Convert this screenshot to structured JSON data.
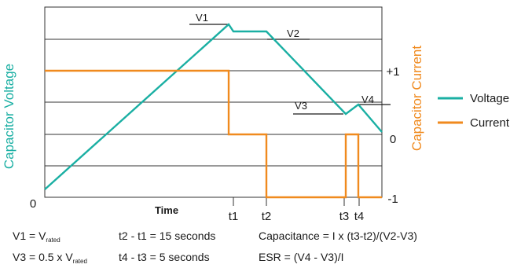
{
  "chart_data": {
    "type": "line",
    "ylabel_left": "Capacitor Voltage",
    "ylabel_right": "Capacitor Current",
    "xlabel": "Time",
    "left_ticks": [
      "0"
    ],
    "right_ticks": [
      "+1",
      "0",
      "-1"
    ],
    "time_markers": [
      "t1",
      "t2",
      "t3",
      "t4"
    ],
    "level_labels": [
      "V1",
      "V2",
      "V3",
      "V4"
    ],
    "colors": {
      "voltage": "#1aafa3",
      "current": "#f08a1e",
      "grid": "#333333"
    },
    "legend_position": "right",
    "series": [
      {
        "name": "Voltage",
        "x": [
          0,
          1,
          1.08,
          1.22,
          2.1,
          2.15,
          2.2
        ],
        "y": [
          0,
          6.4,
          6.2,
          6.2,
          3.0,
          3.3,
          2.6
        ]
      },
      {
        "name": "Current",
        "x": [
          0,
          1,
          1,
          1.22,
          1.22,
          1.9,
          1.9,
          1.96,
          1.96,
          2.15,
          2.2
        ],
        "y": [
          1,
          1,
          0,
          0,
          -1,
          -1,
          0,
          0,
          -1,
          -1,
          -1
        ]
      }
    ]
  },
  "equations": {
    "v1_main": "V1 = V",
    "v1_sub": "rated",
    "v3_main": "V3 = 0.5 x V",
    "v3_sub": "rated",
    "t2t1": "t2 - t1 = 15 seconds",
    "t4t3": "t4 - t3 = 5 seconds",
    "capacitance": "Capacitance = I x (t3-t2)/(V2-V3)",
    "esr": "ESR = (V4 - V3)/I"
  }
}
